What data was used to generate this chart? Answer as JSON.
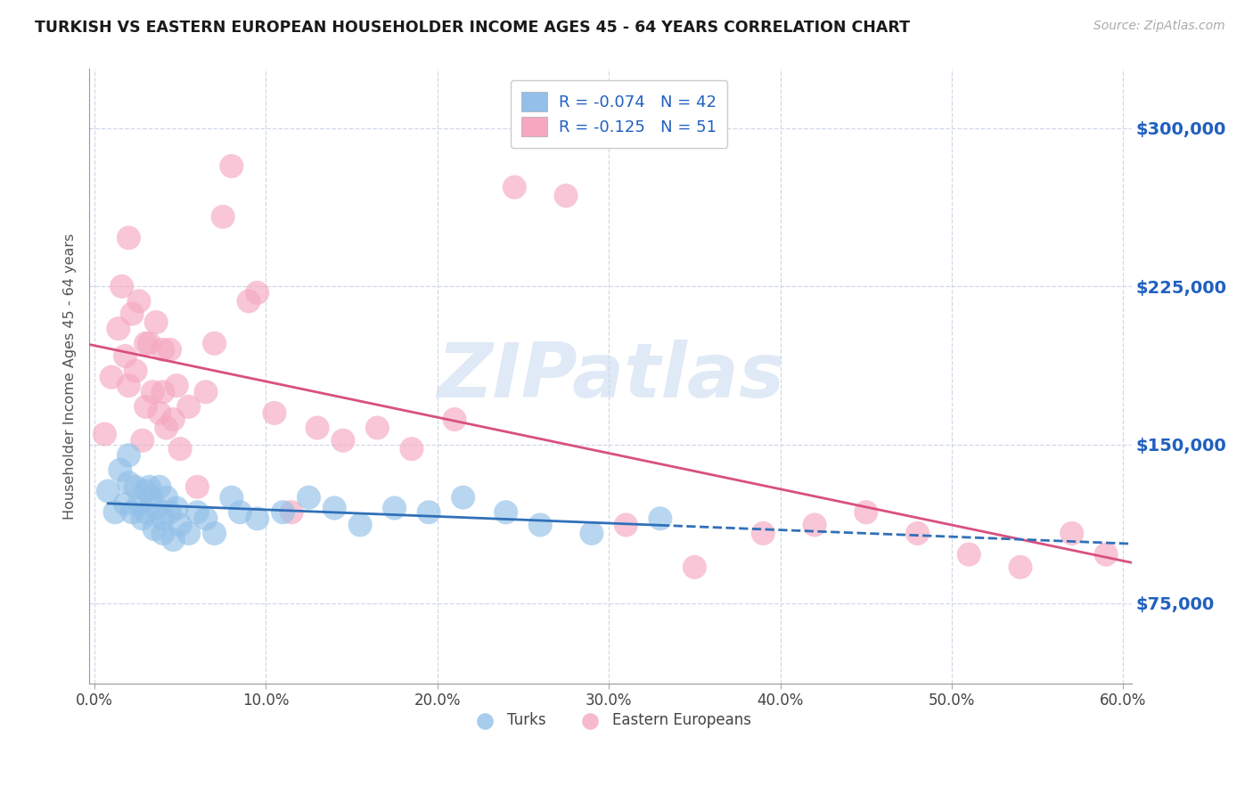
{
  "title": "TURKISH VS EASTERN EUROPEAN HOUSEHOLDER INCOME AGES 45 - 64 YEARS CORRELATION CHART",
  "source": "Source: ZipAtlas.com",
  "ylabel": "Householder Income Ages 45 - 64 years",
  "xlim_min": -0.003,
  "xlim_max": 0.605,
  "ylim_min": 37000,
  "ylim_max": 328000,
  "yticks": [
    75000,
    150000,
    225000,
    300000
  ],
  "ytick_labels": [
    "$75,000",
    "$150,000",
    "$225,000",
    "$300,000"
  ],
  "xticks": [
    0.0,
    0.1,
    0.2,
    0.3,
    0.4,
    0.5,
    0.6
  ],
  "xtick_labels": [
    "0.0%",
    "10.0%",
    "20.0%",
    "30.0%",
    "40.0%",
    "50.0%",
    "60.0%"
  ],
  "turks_R": -0.074,
  "turks_N": 42,
  "eastern_R": -0.125,
  "eastern_N": 51,
  "turk_scatter_color": "#92c0e8",
  "eastern_scatter_color": "#f5a8c0",
  "turk_line_color": "#3070b8",
  "eastern_line_color": "#d85080",
  "legend_R_color": "#2060c0",
  "watermark_color": "#c8daf0",
  "bg_color": "#ffffff",
  "grid_color": "#d0d8e8",
  "turks_x": [
    0.008,
    0.012,
    0.015,
    0.018,
    0.02,
    0.02,
    0.022,
    0.024,
    0.026,
    0.028,
    0.03,
    0.03,
    0.032,
    0.033,
    0.035,
    0.036,
    0.038,
    0.04,
    0.04,
    0.042,
    0.044,
    0.046,
    0.048,
    0.05,
    0.055,
    0.06,
    0.065,
    0.07,
    0.08,
    0.085,
    0.095,
    0.11,
    0.125,
    0.14,
    0.155,
    0.175,
    0.195,
    0.215,
    0.24,
    0.26,
    0.29,
    0.33
  ],
  "turks_y": [
    128000,
    118000,
    138000,
    122000,
    145000,
    132000,
    118000,
    130000,
    122000,
    115000,
    128000,
    118000,
    130000,
    125000,
    110000,
    120000,
    130000,
    115000,
    108000,
    125000,
    118000,
    105000,
    120000,
    112000,
    108000,
    118000,
    115000,
    108000,
    125000,
    118000,
    115000,
    118000,
    125000,
    120000,
    112000,
    120000,
    118000,
    125000,
    118000,
    112000,
    108000,
    115000
  ],
  "eastern_x": [
    0.006,
    0.01,
    0.014,
    0.016,
    0.018,
    0.02,
    0.02,
    0.022,
    0.024,
    0.026,
    0.028,
    0.03,
    0.03,
    0.032,
    0.034,
    0.036,
    0.038,
    0.04,
    0.04,
    0.042,
    0.044,
    0.046,
    0.048,
    0.05,
    0.055,
    0.06,
    0.065,
    0.07,
    0.075,
    0.08,
    0.09,
    0.095,
    0.105,
    0.115,
    0.13,
    0.145,
    0.165,
    0.185,
    0.21,
    0.245,
    0.275,
    0.31,
    0.35,
    0.39,
    0.42,
    0.45,
    0.48,
    0.51,
    0.54,
    0.57,
    0.59
  ],
  "eastern_y": [
    155000,
    182000,
    205000,
    225000,
    192000,
    248000,
    178000,
    212000,
    185000,
    218000,
    152000,
    198000,
    168000,
    198000,
    175000,
    208000,
    165000,
    175000,
    195000,
    158000,
    195000,
    162000,
    178000,
    148000,
    168000,
    130000,
    175000,
    198000,
    258000,
    282000,
    218000,
    222000,
    165000,
    118000,
    158000,
    152000,
    158000,
    148000,
    162000,
    272000,
    268000,
    112000,
    92000,
    108000,
    112000,
    118000,
    108000,
    98000,
    92000,
    108000,
    98000
  ]
}
